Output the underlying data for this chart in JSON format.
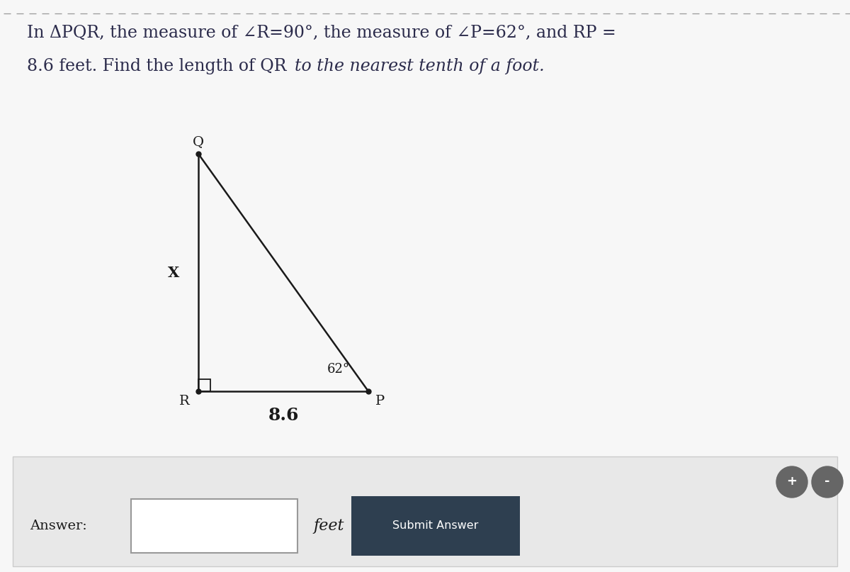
{
  "title_line1": "In ΔPQR, the measure of ∠R=90°, the measure of ∠P=62°, and RP =",
  "title_line2_normal": "8.6 feet. Find the length of QR ",
  "title_line2_italic": "to the nearest tenth of a foot.",
  "bg_color": "#f7f7f7",
  "panel_bg": "#ffffff",
  "label_Q": "Q",
  "label_R": "R",
  "label_P": "P",
  "label_x": "X",
  "label_side": "8.6",
  "label_angle": "62°",
  "answer_label": "Answer:",
  "feet_label": "feet",
  "submit_label": "Submit Answer",
  "dashed_line_color": "#999999",
  "triangle_color": "#1a1a1a",
  "submit_bg": "#2e3f50",
  "submit_fg": "#ffffff",
  "bottom_panel_bg": "#e8e8e8",
  "text_color": "#2b2b4b",
  "title_fontsize": 17,
  "tri_R": [
    2.8,
    2.55
  ],
  "tri_Q": [
    2.8,
    5.9
  ],
  "tri_P": [
    5.2,
    2.55
  ]
}
